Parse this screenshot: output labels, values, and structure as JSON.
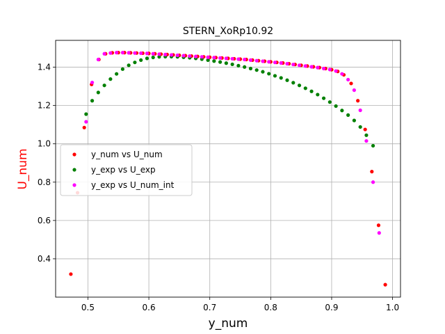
{
  "chart_data": {
    "type": "scatter",
    "title": "STERN_XoRp10.92",
    "xlabel": "y_num",
    "ylabel": "U_num",
    "ylabel_color": "#ff0000",
    "xlim": [
      0.447,
      1.013
    ],
    "ylim": [
      0.2,
      1.54
    ],
    "grid": true,
    "legend_position": "center-left",
    "x_ticks": [
      "0.5",
      "0.6",
      "0.7",
      "0.8",
      "0.9",
      "1.0"
    ],
    "x_tick_values": [
      0.5,
      0.6,
      0.7,
      0.8,
      0.9,
      1.0
    ],
    "y_ticks": [
      "0.4",
      "0.6",
      "0.8",
      "1.0",
      "1.2",
      "1.4"
    ],
    "y_tick_values": [
      0.4,
      0.6,
      0.8,
      1.0,
      1.2,
      1.4
    ],
    "series": [
      {
        "name": "y_num vs U_num",
        "color": "#ff0000",
        "points": [
          [
            0.472,
            0.32
          ],
          [
            0.483,
            0.745
          ],
          [
            0.494,
            1.085
          ],
          [
            0.506,
            1.31
          ],
          [
            0.518,
            1.44
          ],
          [
            0.529,
            1.47
          ],
          [
            0.54,
            1.475
          ],
          [
            0.55,
            1.476
          ],
          [
            0.56,
            1.476
          ],
          [
            0.57,
            1.475
          ],
          [
            0.58,
            1.474
          ],
          [
            0.59,
            1.473
          ],
          [
            0.6,
            1.472
          ],
          [
            0.61,
            1.47
          ],
          [
            0.62,
            1.468
          ],
          [
            0.63,
            1.466
          ],
          [
            0.64,
            1.464
          ],
          [
            0.65,
            1.462
          ],
          [
            0.66,
            1.46
          ],
          [
            0.67,
            1.458
          ],
          [
            0.68,
            1.456
          ],
          [
            0.69,
            1.454
          ],
          [
            0.7,
            1.452
          ],
          [
            0.71,
            1.45
          ],
          [
            0.72,
            1.448
          ],
          [
            0.73,
            1.446
          ],
          [
            0.74,
            1.444
          ],
          [
            0.75,
            1.442
          ],
          [
            0.76,
            1.44
          ],
          [
            0.77,
            1.437
          ],
          [
            0.78,
            1.434
          ],
          [
            0.79,
            1.431
          ],
          [
            0.8,
            1.428
          ],
          [
            0.81,
            1.425
          ],
          [
            0.82,
            1.422
          ],
          [
            0.83,
            1.418
          ],
          [
            0.84,
            1.414
          ],
          [
            0.85,
            1.41
          ],
          [
            0.86,
            1.406
          ],
          [
            0.87,
            1.402
          ],
          [
            0.88,
            1.398
          ],
          [
            0.89,
            1.393
          ],
          [
            0.9,
            1.387
          ],
          [
            0.91,
            1.378
          ],
          [
            0.92,
            1.36
          ],
          [
            0.932,
            1.315
          ],
          [
            0.943,
            1.225
          ],
          [
            0.955,
            1.075
          ],
          [
            0.966,
            0.855
          ],
          [
            0.977,
            0.575
          ],
          [
            0.988,
            0.265
          ]
        ]
      },
      {
        "name": "y_exp vs U_exp",
        "color": "#008000",
        "points": [
          [
            0.497,
            1.155
          ],
          [
            0.507,
            1.225
          ],
          [
            0.517,
            1.268
          ],
          [
            0.527,
            1.305
          ],
          [
            0.537,
            1.338
          ],
          [
            0.547,
            1.365
          ],
          [
            0.557,
            1.39
          ],
          [
            0.567,
            1.41
          ],
          [
            0.577,
            1.425
          ],
          [
            0.587,
            1.437
          ],
          [
            0.597,
            1.446
          ],
          [
            0.607,
            1.451
          ],
          [
            0.617,
            1.454
          ],
          [
            0.627,
            1.455
          ],
          [
            0.637,
            1.455
          ],
          [
            0.647,
            1.454
          ],
          [
            0.657,
            1.452
          ],
          [
            0.667,
            1.449
          ],
          [
            0.677,
            1.446
          ],
          [
            0.687,
            1.442
          ],
          [
            0.697,
            1.437
          ],
          [
            0.707,
            1.432
          ],
          [
            0.717,
            1.427
          ],
          [
            0.727,
            1.421
          ],
          [
            0.737,
            1.415
          ],
          [
            0.747,
            1.408
          ],
          [
            0.757,
            1.401
          ],
          [
            0.767,
            1.393
          ],
          [
            0.777,
            1.385
          ],
          [
            0.787,
            1.376
          ],
          [
            0.797,
            1.366
          ],
          [
            0.807,
            1.355
          ],
          [
            0.817,
            1.344
          ],
          [
            0.827,
            1.332
          ],
          [
            0.837,
            1.319
          ],
          [
            0.847,
            1.305
          ],
          [
            0.857,
            1.29
          ],
          [
            0.867,
            1.274
          ],
          [
            0.877,
            1.257
          ],
          [
            0.887,
            1.238
          ],
          [
            0.897,
            1.218
          ],
          [
            0.907,
            1.197
          ],
          [
            0.917,
            1.174
          ],
          [
            0.927,
            1.15
          ],
          [
            0.937,
            1.122
          ],
          [
            0.947,
            1.088
          ],
          [
            0.957,
            1.045
          ],
          [
            0.968,
            0.99
          ]
        ]
      },
      {
        "name": "y_exp vs U_num_int",
        "color": "#ff00ff",
        "points": [
          [
            0.497,
            1.115
          ],
          [
            0.507,
            1.32
          ],
          [
            0.517,
            1.44
          ],
          [
            0.527,
            1.47
          ],
          [
            0.537,
            1.474
          ],
          [
            0.547,
            1.476
          ],
          [
            0.557,
            1.476
          ],
          [
            0.567,
            1.475
          ],
          [
            0.577,
            1.474
          ],
          [
            0.587,
            1.473
          ],
          [
            0.597,
            1.472
          ],
          [
            0.607,
            1.47
          ],
          [
            0.617,
            1.468
          ],
          [
            0.627,
            1.466
          ],
          [
            0.637,
            1.464
          ],
          [
            0.647,
            1.462
          ],
          [
            0.657,
            1.46
          ],
          [
            0.667,
            1.458
          ],
          [
            0.677,
            1.456
          ],
          [
            0.687,
            1.454
          ],
          [
            0.697,
            1.452
          ],
          [
            0.707,
            1.45
          ],
          [
            0.717,
            1.448
          ],
          [
            0.727,
            1.446
          ],
          [
            0.737,
            1.444
          ],
          [
            0.747,
            1.442
          ],
          [
            0.757,
            1.44
          ],
          [
            0.767,
            1.437
          ],
          [
            0.777,
            1.434
          ],
          [
            0.787,
            1.431
          ],
          [
            0.797,
            1.428
          ],
          [
            0.807,
            1.425
          ],
          [
            0.817,
            1.422
          ],
          [
            0.827,
            1.418
          ],
          [
            0.837,
            1.414
          ],
          [
            0.847,
            1.41
          ],
          [
            0.857,
            1.406
          ],
          [
            0.867,
            1.402
          ],
          [
            0.877,
            1.398
          ],
          [
            0.887,
            1.393
          ],
          [
            0.897,
            1.388
          ],
          [
            0.907,
            1.38
          ],
          [
            0.917,
            1.365
          ],
          [
            0.927,
            1.335
          ],
          [
            0.937,
            1.28
          ],
          [
            0.947,
            1.175
          ],
          [
            0.957,
            1.015
          ],
          [
            0.968,
            0.8
          ],
          [
            0.978,
            0.535
          ]
        ]
      }
    ]
  }
}
